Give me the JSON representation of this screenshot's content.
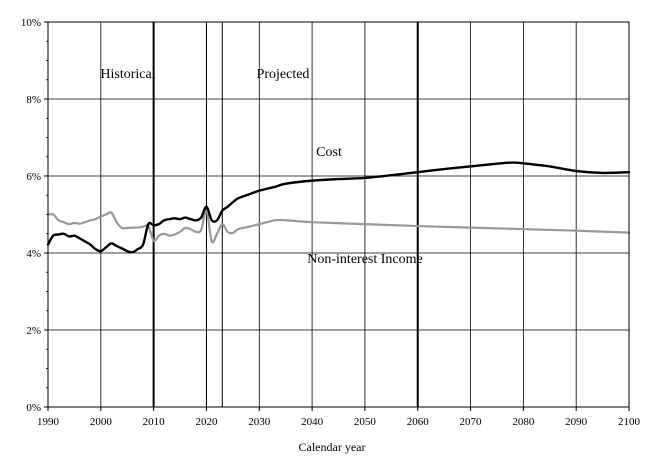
{
  "chart_data": {
    "type": "line",
    "title": "",
    "xlabel": "Calendar year",
    "ylabel": "",
    "xlim": [
      1990,
      2100
    ],
    "ylim": [
      0,
      10
    ],
    "x_ticks": [
      "1990",
      "2000",
      "2010",
      "2020",
      "2030",
      "2040",
      "2050",
      "2060",
      "2070",
      "2080",
      "2090",
      "2100"
    ],
    "y_ticks": [
      "0%",
      "2%",
      "4%",
      "6%",
      "8%",
      "10%"
    ],
    "grid": true,
    "annotations": {
      "historical": "Historical",
      "projected": "Projected",
      "cost": "Cost",
      "income": "Non-interest Income"
    },
    "vertical_markers": [
      2010,
      2020,
      2023,
      2060
    ],
    "heavy_markers": [
      2010,
      2060
    ],
    "series": [
      {
        "name": "Cost",
        "color": "#000000",
        "x": [
          1990,
          1991,
          1992,
          1993,
          1994,
          1995,
          1996,
          1997,
          1998,
          1999,
          2000,
          2001,
          2002,
          2003,
          2004,
          2005,
          2006,
          2007,
          2008,
          2009,
          2010,
          2011,
          2012,
          2013,
          2014,
          2015,
          2016,
          2017,
          2018,
          2019,
          2020,
          2021,
          2022,
          2023,
          2024,
          2025,
          2026,
          2028,
          2030,
          2033,
          2035,
          2040,
          2045,
          2050,
          2055,
          2060,
          2065,
          2070,
          2075,
          2078,
          2080,
          2085,
          2090,
          2095,
          2100
        ],
        "values": [
          4.22,
          4.45,
          4.48,
          4.5,
          4.43,
          4.45,
          4.38,
          4.3,
          4.22,
          4.1,
          4.05,
          4.15,
          4.25,
          4.18,
          4.12,
          4.05,
          4.02,
          4.1,
          4.22,
          4.75,
          4.72,
          4.75,
          4.85,
          4.88,
          4.9,
          4.88,
          4.92,
          4.88,
          4.85,
          4.92,
          5.2,
          4.85,
          4.85,
          5.1,
          5.2,
          5.32,
          5.42,
          5.52,
          5.62,
          5.72,
          5.8,
          5.88,
          5.92,
          5.95,
          6.02,
          6.1,
          6.18,
          6.25,
          6.32,
          6.35,
          6.33,
          6.25,
          6.13,
          6.08,
          6.1
        ]
      },
      {
        "name": "Non-interest Income",
        "color": "#999999",
        "x": [
          1990,
          1991,
          1992,
          1993,
          1994,
          1995,
          1996,
          1997,
          1998,
          1999,
          2000,
          2001,
          2002,
          2003,
          2004,
          2005,
          2006,
          2007,
          2008,
          2009,
          2010,
          2011,
          2012,
          2013,
          2014,
          2015,
          2016,
          2017,
          2018,
          2019,
          2020,
          2021,
          2022,
          2023,
          2024,
          2025,
          2026,
          2028,
          2030,
          2033,
          2035,
          2040,
          2050,
          2060,
          2070,
          2080,
          2090,
          2100
        ],
        "values": [
          5.0,
          5.0,
          4.85,
          4.8,
          4.75,
          4.78,
          4.76,
          4.8,
          4.85,
          4.88,
          4.95,
          5.0,
          5.05,
          4.8,
          4.65,
          4.65,
          4.66,
          4.66,
          4.68,
          4.7,
          4.32,
          4.45,
          4.5,
          4.45,
          4.48,
          4.55,
          4.65,
          4.62,
          4.55,
          4.6,
          5.1,
          4.3,
          4.5,
          4.75,
          4.55,
          4.52,
          4.62,
          4.68,
          4.75,
          4.85,
          4.85,
          4.8,
          4.75,
          4.7,
          4.66,
          4.62,
          4.58,
          4.53
        ]
      }
    ]
  }
}
